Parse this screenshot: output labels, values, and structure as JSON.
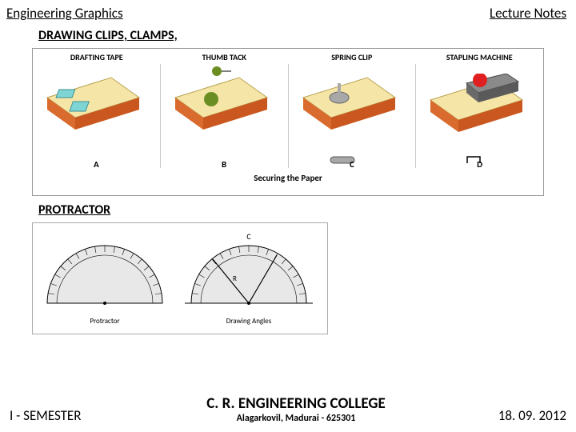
{
  "header": {
    "left": "Engineering  Graphics",
    "right": "Lecture Notes"
  },
  "section1": {
    "title": "DRAWING CLIPS, CLAMPS,"
  },
  "figure1": {
    "columns": [
      "DRAFTING TAPE",
      "THUMB TACK",
      "SPRING CLIP",
      "STAPLING MACHINE"
    ],
    "panel_labels": [
      "A",
      "B",
      "C",
      "D"
    ],
    "caption": "Securing the Paper",
    "colors": {
      "board_top": "#f5e6a8",
      "board_edge_front": "#d96b2e",
      "board_edge_side": "#c9571f",
      "tape": "#7fd4d4",
      "thumbtack": "#6b8e23",
      "springclip": "#a8a8a8",
      "stapler_body": "#7a7a7a",
      "stapler_button": "#e02020"
    }
  },
  "section2": {
    "title": "PROTRACTOR"
  },
  "figure2": {
    "labels": {
      "left": "Protractor",
      "right": "Drawing Angles",
      "c": "C",
      "r": "R"
    },
    "colors": {
      "line": "#000000",
      "arc_fill": "#e8e8e8"
    }
  },
  "footer": {
    "left": "I - SEMESTER",
    "college": "C. R. ENGINEERING COLLEGE",
    "addr": "Alagarkovil, Madurai - 625301",
    "date": "18. 09. 2012"
  }
}
